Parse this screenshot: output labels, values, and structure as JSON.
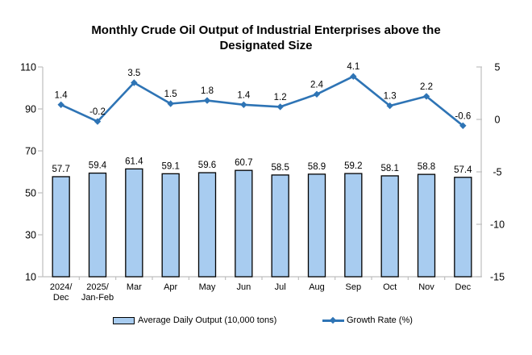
{
  "chart_data": {
    "type": "bar",
    "title": "Monthly Crude Oil Output of Industrial Enterprises above the Designated Size",
    "title_lines": [
      "Monthly Crude Oil Output of Industrial Enterprises above the",
      "Designated Size"
    ],
    "categories": [
      [
        "2024/",
        "Dec"
      ],
      [
        "2025/",
        "Jan-Feb"
      ],
      [
        "Mar"
      ],
      [
        "Apr"
      ],
      [
        "May"
      ],
      [
        "Jun"
      ],
      [
        "Jul"
      ],
      [
        "Aug"
      ],
      [
        "Sep"
      ],
      [
        "Oct"
      ],
      [
        "Nov"
      ],
      [
        "Dec"
      ]
    ],
    "series": [
      {
        "name": "Average Daily Output (10,000 tons)",
        "type": "bar",
        "axis": "left",
        "values": [
          57.7,
          59.4,
          61.4,
          59.1,
          59.6,
          60.7,
          58.5,
          58.9,
          59.2,
          58.1,
          58.8,
          57.4
        ]
      },
      {
        "name": "Growth Rate (%)",
        "type": "line",
        "axis": "right",
        "values": [
          1.4,
          -0.2,
          3.5,
          1.5,
          1.8,
          1.4,
          1.2,
          2.4,
          4.1,
          1.3,
          2.2,
          -0.6
        ]
      }
    ],
    "left_axis": {
      "min": 10,
      "max": 110,
      "ticks": [
        10,
        30,
        50,
        70,
        90,
        110
      ]
    },
    "right_axis": {
      "min": -15,
      "max": 5,
      "ticks": [
        -15,
        -10,
        -5,
        0,
        5
      ]
    },
    "grid": false,
    "legend_position": "bottom",
    "legend": [
      {
        "label": "Average Daily Output (10,000 tons)",
        "swatch": "bar"
      },
      {
        "label": "Growth Rate (%)",
        "swatch": "line"
      }
    ],
    "colors": {
      "bar_fill": "#A8CCF0",
      "bar_border": "#000000",
      "line": "#2E74B5",
      "axis": "#BFBFBF",
      "text": "#000000"
    }
  }
}
